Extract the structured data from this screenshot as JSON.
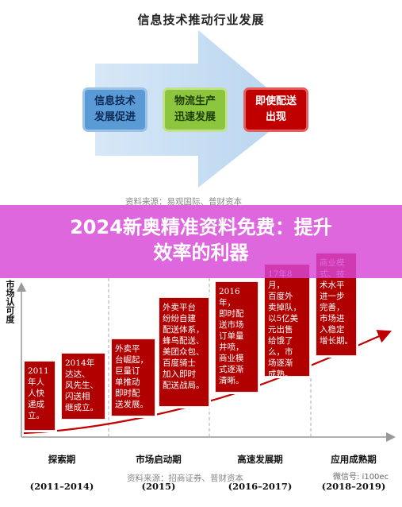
{
  "top_chart": {
    "title": "信息技术推动行业发展",
    "boxes": [
      {
        "text": "信息技术\n发展促进",
        "color": "#5b9bd5"
      },
      {
        "text": "物流生产\n迅速发展",
        "color": "#8cc63f"
      },
      {
        "text": "即使配送\n出现",
        "color": "#c00000"
      }
    ],
    "source": "资料来源：易观国际、普财资本"
  },
  "banner": {
    "title": "2024新奥精准资料免费：提升\n效率的利器",
    "color": "#d746d7"
  },
  "bottom_chart": {
    "ylabel": "市场认可度",
    "notes": [
      "2011\n年人\n人快\n递成\n立。",
      "2014年\n达达、\n风先生、\n闪送相\n继成立。",
      "外卖平\n台崛起，\n巨量订\n单推动\n即时配\n送发展。",
      "外卖平台\n纷纷自建\n配送体系，\n蜂鸟配送、\n美团众包、\n百度骑士\n加入即时\n配送战局。",
      "2016年，\n即时配\n送市场\n订单量\n井喷，\n商业模\n式逐渐\n清晰。",
      "17年8月，\n百度外\n卖掉队，\n以5亿美\n元出售\n给饿了\n么，市\n场逐渐\n成熟。",
      "商业模\n式、技\n术水平\n进一步\n完善，\n市场进\n入稳定\n增长期。"
    ],
    "phases": [
      {
        "name": "探索期",
        "period": "(2011–2014)"
      },
      {
        "name": "市场启动期",
        "period": "(2015)"
      },
      {
        "name": "高速发展期",
        "period": "(2016–2017)"
      },
      {
        "name": "应用成熟期",
        "period": "(2018–2019)"
      }
    ],
    "source": "资料来源：招商证券、普财资本",
    "watermark": "微信号: i100ec"
  }
}
